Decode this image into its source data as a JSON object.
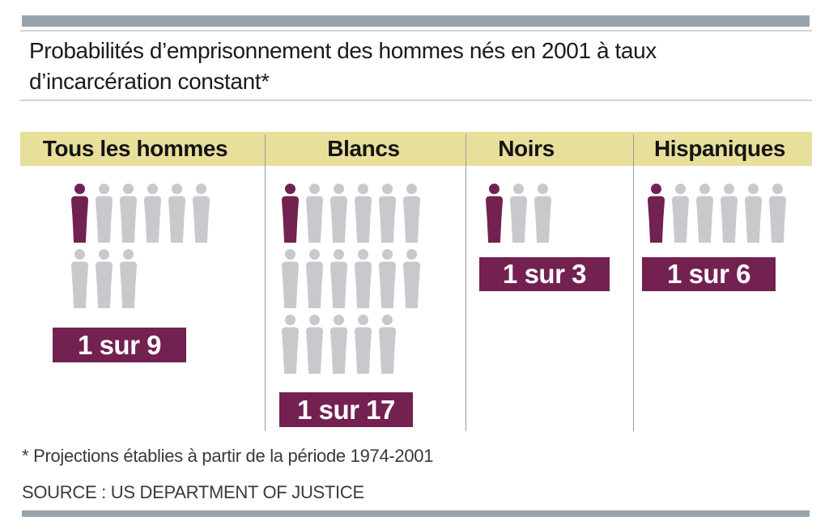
{
  "page": {
    "title_line1": "Probabilités d’emprisonnement des hommes nés en 2001 à taux",
    "title_line2": "d’incarcération constant*",
    "footnote": "* Projections établies à partir de la période 1974-2001",
    "source": "SOURCE : US DEPARTMENT OF JUSTICE"
  },
  "colors": {
    "accent_maroon": "#722150",
    "figure_gray": "#c9c9cd",
    "band_yellow": "#e8df9b",
    "bar_gray": "#97a4ab"
  },
  "chart_data": {
    "type": "pictogram",
    "title": "Probabilités d’emprisonnement des hommes nés en 2001 à taux d’incarcération constant*",
    "unit": "1 silhouette = 1 homme, silhouette foncée = homme emprisonné",
    "groups": [
      {
        "label": "Tous les hommes",
        "ratio_label": "1 sur 9",
        "one_in": 9,
        "highlighted": 1,
        "rows": [
          6,
          3
        ]
      },
      {
        "label": "Blancs",
        "ratio_label": "1 sur 17",
        "one_in": 17,
        "highlighted": 1,
        "rows": [
          6,
          6,
          5
        ]
      },
      {
        "label": "Noirs",
        "ratio_label": "1 sur 3",
        "one_in": 3,
        "highlighted": 1,
        "rows": [
          3
        ]
      },
      {
        "label": "Hispaniques",
        "ratio_label": "1 sur 6",
        "one_in": 6,
        "highlighted": 1,
        "rows": [
          6
        ]
      }
    ],
    "footnote": "* Projections établies à partir de la période 1974-2001",
    "source": "SOURCE : US DEPARTMENT OF JUSTICE"
  }
}
